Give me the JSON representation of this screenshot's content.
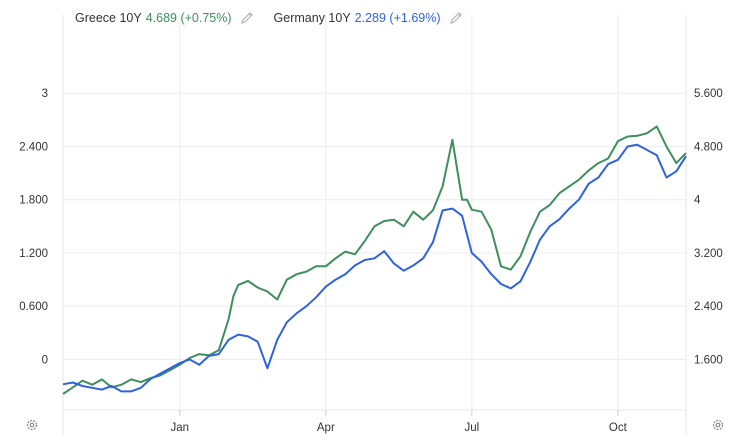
{
  "chart_data": {
    "type": "line",
    "title": "",
    "xlabel": "",
    "ylabel": "",
    "x_ticks": [
      "Jan",
      "Apr",
      "Jul",
      "Oct"
    ],
    "x_tick_pos": [
      1,
      4,
      7,
      10
    ],
    "xlim": [
      -1.4,
      11.4
    ],
    "left_axis": {
      "ticks": [
        "0",
        "0.600",
        "1.200",
        "1.800",
        "2.400",
        "3"
      ],
      "values": [
        0,
        0.6,
        1.2,
        1.8,
        2.4,
        3.0
      ],
      "ylim": [
        -0.57,
        3.6
      ]
    },
    "right_axis": {
      "ticks": [
        "1.600",
        "2.400",
        "3.200",
        "4",
        "4.800",
        "5.600"
      ],
      "values": [
        1.6,
        2.4,
        3.2,
        4.0,
        4.8,
        5.6
      ],
      "ylim": [
        0.84,
        6.4
      ]
    },
    "grid": true,
    "legend_position": "top-left",
    "series": [
      {
        "name": "Greece 10Y",
        "value_label": "4.689 (+0.75%)",
        "color": "#3d8f5c",
        "axis": "right",
        "x": [
          -1.4,
          -1.2,
          -1.0,
          -0.8,
          -0.6,
          -0.4,
          -0.2,
          0.0,
          0.2,
          0.4,
          0.6,
          0.8,
          1.0,
          1.2,
          1.4,
          1.6,
          1.8,
          2.0,
          2.1,
          2.2,
          2.4,
          2.6,
          2.8,
          3.0,
          3.2,
          3.4,
          3.6,
          3.8,
          4.0,
          4.2,
          4.4,
          4.6,
          4.8,
          5.0,
          5.2,
          5.4,
          5.6,
          5.8,
          6.0,
          6.2,
          6.4,
          6.6,
          6.8,
          6.9,
          7.0,
          7.2,
          7.4,
          7.6,
          7.8,
          8.0,
          8.2,
          8.4,
          8.6,
          8.8,
          9.0,
          9.2,
          9.4,
          9.6,
          9.8,
          10.0,
          10.2,
          10.4,
          10.6,
          10.8,
          11.0,
          11.2,
          11.4
        ],
        "values": [
          1.08,
          1.18,
          1.28,
          1.22,
          1.3,
          1.18,
          1.22,
          1.3,
          1.26,
          1.32,
          1.36,
          1.44,
          1.52,
          1.62,
          1.68,
          1.66,
          1.74,
          2.2,
          2.55,
          2.72,
          2.78,
          2.68,
          2.62,
          2.5,
          2.8,
          2.88,
          2.92,
          3.0,
          3.0,
          3.12,
          3.22,
          3.18,
          3.38,
          3.6,
          3.68,
          3.7,
          3.6,
          3.82,
          3.7,
          3.84,
          4.2,
          4.9,
          4.0,
          4.0,
          3.85,
          3.82,
          3.55,
          3.0,
          2.95,
          3.15,
          3.52,
          3.82,
          3.92,
          4.1,
          4.2,
          4.3,
          4.44,
          4.55,
          4.62,
          4.88,
          4.95,
          4.96,
          5.0,
          5.1,
          4.8,
          4.55,
          4.7
        ]
      },
      {
        "name": "Germany 10Y",
        "value_label": "2.289 (+1.69%)",
        "color": "#2f62e0",
        "axis": "left",
        "x": [
          -1.4,
          -1.2,
          -1.0,
          -0.8,
          -0.6,
          -0.4,
          -0.2,
          0.0,
          0.2,
          0.4,
          0.6,
          0.8,
          1.0,
          1.2,
          1.4,
          1.6,
          1.8,
          2.0,
          2.2,
          2.4,
          2.6,
          2.8,
          3.0,
          3.2,
          3.4,
          3.6,
          3.8,
          4.0,
          4.2,
          4.4,
          4.6,
          4.8,
          5.0,
          5.2,
          5.4,
          5.6,
          5.8,
          6.0,
          6.2,
          6.4,
          6.6,
          6.8,
          7.0,
          7.2,
          7.4,
          7.6,
          7.8,
          8.0,
          8.2,
          8.4,
          8.6,
          8.8,
          9.0,
          9.2,
          9.4,
          9.6,
          9.8,
          10.0,
          10.2,
          10.4,
          10.6,
          10.8,
          11.0,
          11.2,
          11.4
        ],
        "values": [
          -0.28,
          -0.26,
          -0.3,
          -0.32,
          -0.34,
          -0.3,
          -0.36,
          -0.36,
          -0.32,
          -0.22,
          -0.16,
          -0.1,
          -0.04,
          0.0,
          -0.06,
          0.04,
          0.06,
          0.22,
          0.28,
          0.26,
          0.2,
          -0.1,
          0.22,
          0.42,
          0.52,
          0.6,
          0.7,
          0.82,
          0.9,
          0.96,
          1.06,
          1.12,
          1.14,
          1.22,
          1.08,
          1.0,
          1.06,
          1.14,
          1.32,
          1.68,
          1.7,
          1.62,
          1.2,
          1.1,
          0.96,
          0.85,
          0.8,
          0.88,
          1.1,
          1.35,
          1.5,
          1.58,
          1.7,
          1.8,
          1.98,
          2.05,
          2.2,
          2.25,
          2.4,
          2.42,
          2.36,
          2.3,
          2.05,
          2.12,
          2.29
        ]
      }
    ]
  }
}
